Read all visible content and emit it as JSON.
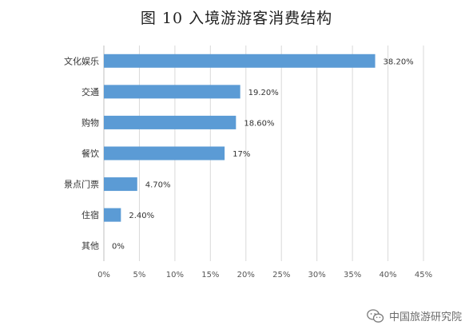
{
  "chart_data": {
    "type": "bar",
    "orientation": "horizontal",
    "title": "图 10  入境游游客消费结构",
    "categories": [
      "文化娱乐",
      "交通",
      "购物",
      "餐饮",
      "景点门票",
      "住宿",
      "其他"
    ],
    "values": [
      38.2,
      19.2,
      18.6,
      17,
      4.7,
      2.4,
      0
    ],
    "data_labels": [
      "38.20%",
      "19.20%",
      "18.60%",
      "17%",
      "4.70%",
      "2.40%",
      "0%"
    ],
    "x_ticks": [
      "0%",
      "5%",
      "10%",
      "15%",
      "20%",
      "25%",
      "30%",
      "35%",
      "40%",
      "45%"
    ],
    "xlim": [
      0,
      45
    ],
    "grid": true,
    "bar_color": "#5b9bd5"
  },
  "watermark": {
    "text": "中国旅游研究院",
    "icon": "wechat-icon"
  }
}
